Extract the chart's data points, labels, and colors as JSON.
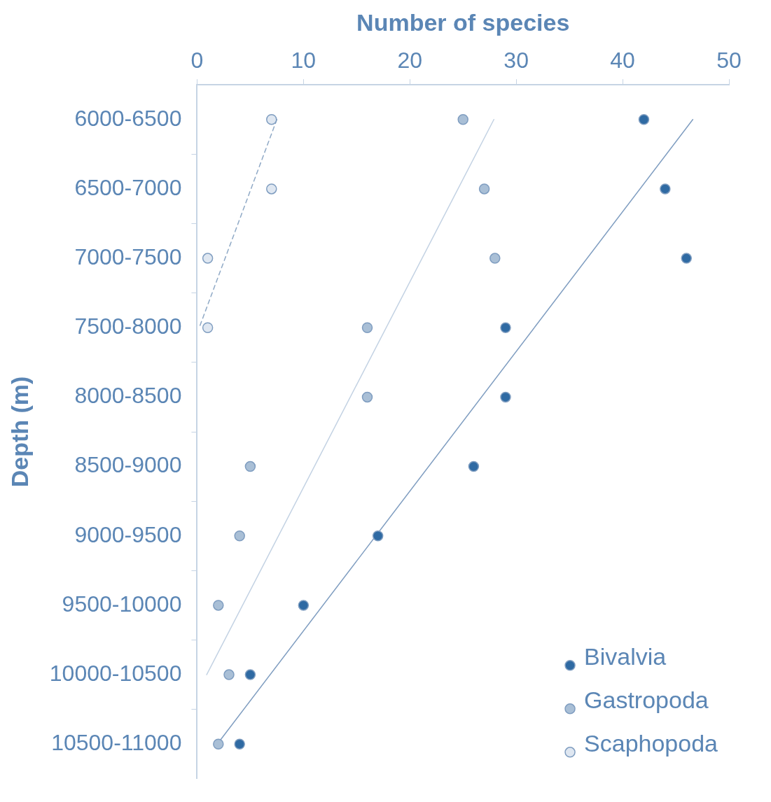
{
  "chart_data": {
    "type": "scatter",
    "orientation": "horizontal",
    "xlabel": "Number of species",
    "ylabel": "Depth (m)",
    "categories": [
      "6000-6500",
      "6500-7000",
      "7000-7500",
      "7500-8000",
      "8000-8500",
      "8500-9000",
      "9000-9500",
      "9500-10000",
      "10000-10500",
      "10500-11000"
    ],
    "xlim": [
      0,
      50
    ],
    "xticks": [
      0,
      10,
      20,
      30,
      40,
      50
    ],
    "grid": false,
    "legend": "bottom right",
    "marker": "circle",
    "series": [
      {
        "name": "Bivalvia",
        "color": "#2f6aa3",
        "values": [
          42,
          44,
          46,
          29,
          29,
          26,
          17,
          10,
          5,
          4
        ]
      },
      {
        "name": "Gastropoda",
        "color": "#a9bfd6",
        "values": [
          25,
          27,
          28,
          16,
          16,
          5,
          4,
          2,
          3,
          2
        ]
      },
      {
        "name": "Scaphopoda",
        "color": "#dfe7f1",
        "values": [
          7,
          7,
          1,
          1,
          null,
          null,
          null,
          null,
          null,
          null
        ]
      },
      {
        "type": "line",
        "color": "#7f9dc0",
        "marker": "none",
        "values": [
          46.6,
          null,
          null,
          null,
          null,
          null,
          null,
          null,
          null,
          1.9
        ]
      },
      {
        "type": "line",
        "color": "#c3d2e3",
        "marker": "none",
        "values": [
          27.9,
          null,
          null,
          null,
          null,
          null,
          null,
          null,
          0.9,
          null
        ]
      },
      {
        "type": "line",
        "color": "#8fa9c6",
        "marker": "none",
        "line_style": "dashed",
        "values": [
          7.5,
          null,
          null,
          0.2,
          null,
          null,
          null,
          null,
          null,
          null
        ]
      }
    ]
  }
}
